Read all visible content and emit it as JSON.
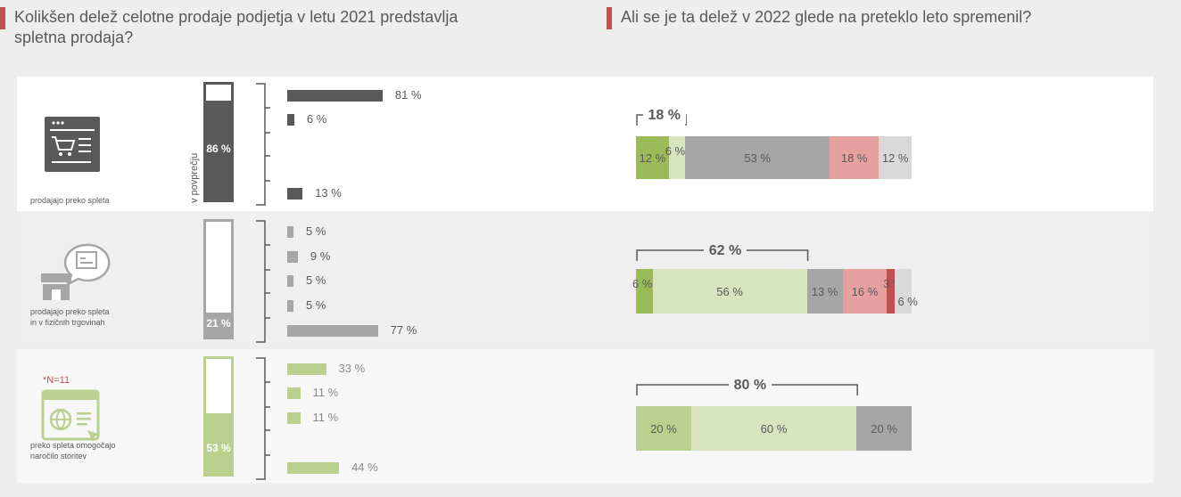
{
  "headings": {
    "left": "Kolikšen delež celotne prodaje podjetja v letu 2021 predstavlja spletna prodaja?",
    "right": "Ali se je ta delež v 2022 glede na preteklo leto spremenil?"
  },
  "side_label": "v povprečju",
  "colors": {
    "accent": "#c0504d",
    "dark": "#595959",
    "mid": "#a6a6a6",
    "green": "#b9d08f",
    "green_dark": "#9bbb59",
    "green_light": "#d7e4bd",
    "grey_seg": "#a6a6a6",
    "light_grey_seg": "#d9d9d9",
    "red_light": "#e6a0a0",
    "red_dark": "#c0504d"
  },
  "panels": [
    {
      "label_lines": [
        "prodajajo preko spleta"
      ],
      "icon": "online-shop-icon",
      "note": "",
      "average": {
        "value": 0.86,
        "label": "86 %"
      },
      "distribution": [
        {
          "value": 81,
          "label": "81 %"
        },
        {
          "value": 6,
          "label": "6 %"
        },
        {
          "value": null,
          "label": ""
        },
        {
          "value": null,
          "label": ""
        },
        {
          "value": 13,
          "label": "13 %"
        }
      ],
      "bracket_label": "18 %",
      "stack": [
        {
          "value": 12,
          "label": "12 %",
          "color": "#9bbb59"
        },
        {
          "value": 6,
          "label": "6 %",
          "color": "#d7e4bd"
        },
        {
          "value": 53,
          "label": "53 %",
          "color": "#a6a6a6"
        },
        {
          "value": 18,
          "label": "18 %",
          "color": "#e6a0a0"
        },
        {
          "value": 12,
          "label": "12 %",
          "color": "#d9d9d9"
        }
      ]
    },
    {
      "label_lines": [
        "prodajajo preko spleta",
        "in v fizičnih trgovinah"
      ],
      "icon": "store-chat-icon",
      "note": "",
      "average": {
        "value": 0.21,
        "label": "21 %"
      },
      "distribution": [
        {
          "value": 5,
          "label": "5 %"
        },
        {
          "value": 9,
          "label": "9 %"
        },
        {
          "value": 5,
          "label": "5 %"
        },
        {
          "value": 5,
          "label": "5 %"
        },
        {
          "value": 77,
          "label": "77 %"
        }
      ],
      "bracket_label": "62 %",
      "stack": [
        {
          "value": 6,
          "label": "6 %",
          "color": "#9bbb59"
        },
        {
          "value": 56,
          "label": "56 %",
          "color": "#d7e4bd"
        },
        {
          "value": 13,
          "label": "13 %",
          "color": "#a6a6a6"
        },
        {
          "value": 16,
          "label": "16 %",
          "color": "#e6a0a0"
        },
        {
          "value": 3,
          "label": "3 %",
          "color": "#c0504d"
        },
        {
          "value": 6,
          "label": "6 %",
          "color": "#d9d9d9"
        }
      ]
    },
    {
      "label_lines": [
        "preko spleta omogočajo",
        "naročilo storitev"
      ],
      "icon": "web-service-icon",
      "note": "*N=11",
      "average": {
        "value": 0.53,
        "label": "53 %"
      },
      "distribution": [
        {
          "value": 33,
          "label": "33 %"
        },
        {
          "value": 11,
          "label": "11 %"
        },
        {
          "value": 11,
          "label": "11 %"
        },
        {
          "value": null,
          "label": ""
        },
        {
          "value": 44,
          "label": "44 %"
        }
      ],
      "bracket_label": "80 %",
      "stack": [
        {
          "value": 20,
          "label": "20 %",
          "color": "#b9d08f"
        },
        {
          "value": 60,
          "label": "60 %",
          "color": "#d7e4bd"
        },
        {
          "value": 20,
          "label": "20 %",
          "color": "#a6a6a6"
        }
      ]
    }
  ],
  "chart_data": [
    {
      "type": "bar",
      "title": "Kolikšen delež celotne prodaje podjetja v letu 2021 predstavlja spletna prodaja?",
      "series": [
        {
          "name": "prodajajo preko spleta",
          "average": 86,
          "values": [
            81,
            6,
            null,
            null,
            13
          ]
        },
        {
          "name": "prodajajo preko spleta in v fizičnih trgovinah",
          "average": 21,
          "values": [
            5,
            9,
            5,
            5,
            77
          ]
        },
        {
          "name": "preko spleta omogočajo naročilo storitev",
          "average": 53,
          "values": [
            33,
            11,
            11,
            null,
            44
          ]
        }
      ]
    },
    {
      "type": "bar",
      "title": "Ali se je ta delež v 2022 glede na preteklo leto spremenil?",
      "series": [
        {
          "name": "prodajajo preko spleta",
          "values": [
            12,
            6,
            53,
            18,
            12
          ],
          "bracket": 18
        },
        {
          "name": "prodajajo preko spleta in v fizičnih trgovinah",
          "values": [
            6,
            56,
            13,
            16,
            3,
            6
          ],
          "bracket": 62
        },
        {
          "name": "preko spleta omogočajo naročilo storitev",
          "values": [
            20,
            60,
            20
          ],
          "bracket": 80
        }
      ]
    }
  ]
}
